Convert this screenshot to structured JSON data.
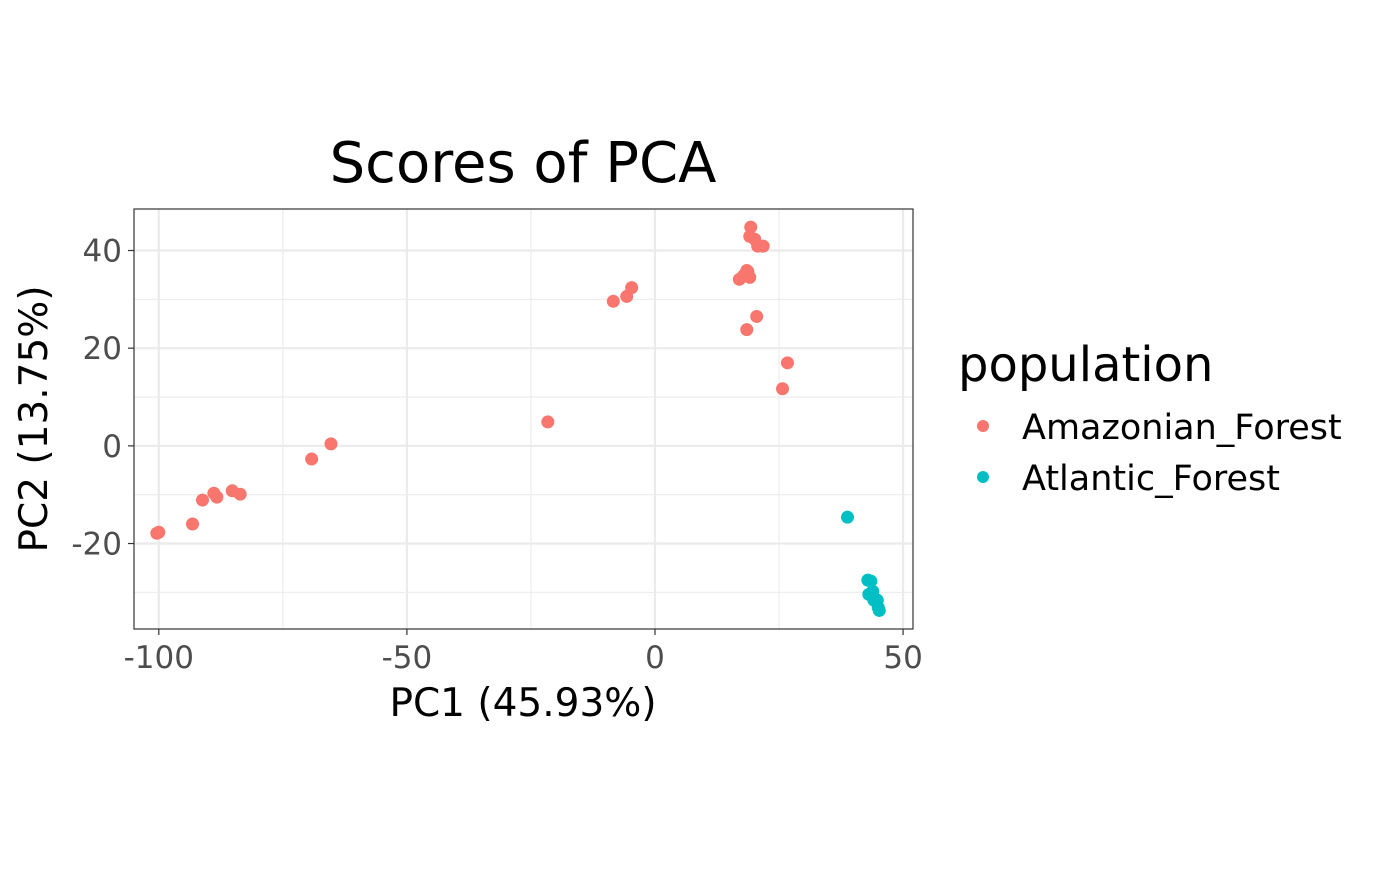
{
  "chart_data": {
    "type": "scatter",
    "title": "Scores of PCA",
    "xlabel": "PC1 (45.93%)",
    "ylabel": "PC2 (13.75%)",
    "xlim": [
      -105,
      52
    ],
    "ylim": [
      -37.5,
      48.5
    ],
    "xticks": [
      -100,
      -50,
      0,
      50
    ],
    "yticks": [
      -20,
      0,
      20,
      40
    ],
    "grid": true,
    "legend": {
      "title": "population",
      "position": "right"
    },
    "series": [
      {
        "name": "Amazonian_Forest",
        "color": "#F8766D",
        "points": [
          [
            -100.4,
            -17.9
          ],
          [
            -100,
            -17.7
          ],
          [
            -93.2,
            -16.0
          ],
          [
            -91.2,
            -11.1
          ],
          [
            -88.9,
            -9.7
          ],
          [
            -88.3,
            -10.5
          ],
          [
            -85.2,
            -9.2
          ],
          [
            -83.6,
            -9.9
          ],
          [
            -69.2,
            -2.7
          ],
          [
            -65.3,
            0.4
          ],
          [
            -21.6,
            4.9
          ],
          [
            -8.4,
            29.6
          ],
          [
            -5.7,
            30.6
          ],
          [
            -4.7,
            32.4
          ],
          [
            19.3,
            44.8
          ],
          [
            19.1,
            42.9
          ],
          [
            20.1,
            42.3
          ],
          [
            20.7,
            40.9
          ],
          [
            21.8,
            40.9
          ],
          [
            17.0,
            34.1
          ],
          [
            17.9,
            34.9
          ],
          [
            18.5,
            35.9
          ],
          [
            19.1,
            34.5
          ],
          [
            18.7,
            35.7
          ],
          [
            20.5,
            26.5
          ],
          [
            18.5,
            23.8
          ],
          [
            26.7,
            17.0
          ],
          [
            25.7,
            11.7
          ]
        ]
      },
      {
        "name": "Atlantic_Forest",
        "color": "#00BFC4",
        "points": [
          [
            38.8,
            -14.6
          ],
          [
            42.9,
            -27.5
          ],
          [
            43.5,
            -27.7
          ],
          [
            43.1,
            -30.4
          ],
          [
            43.9,
            -29.8
          ],
          [
            44.1,
            -31.6
          ],
          [
            44.8,
            -31.6
          ],
          [
            45.0,
            -33.1
          ],
          [
            45.2,
            -33.7
          ]
        ]
      }
    ]
  }
}
